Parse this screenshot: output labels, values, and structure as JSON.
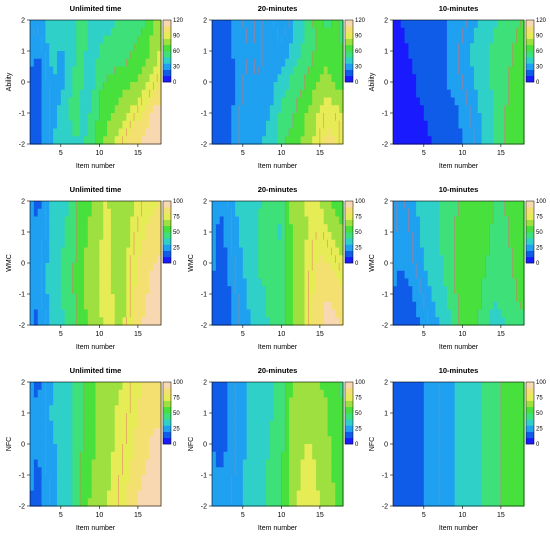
{
  "palette": [
    "#1a1aff",
    "#0f5ce8",
    "#1fa0f0",
    "#2fd0c8",
    "#3ee07a",
    "#48e03c",
    "#9ee040",
    "#e6ec55",
    "#f4e070",
    "#f8d8b0"
  ],
  "contour_color": "#e07070",
  "chart_data": [
    {
      "type": "heatmap",
      "title": "Unlimited time",
      "xlabel": "Item number",
      "ylabel": "Ability",
      "xlim": [
        1,
        18
      ],
      "ylim": [
        -2,
        2
      ],
      "xticks": [
        "5",
        "10",
        "15"
      ],
      "yticks": [
        "-2",
        "-1",
        "0",
        "1",
        "2"
      ],
      "colorbar_ticks": [
        "0",
        "30",
        "60",
        "90",
        "120"
      ],
      "zlim": [
        0,
        120
      ],
      "z": [
        [
          34,
          30,
          38,
          45,
          38,
          40,
          45,
          58,
          38,
          42,
          36,
          50,
          60,
          48,
          55,
          60,
          72,
          75
        ],
        [
          28,
          25,
          32,
          40,
          34,
          42,
          48,
          50,
          40,
          48,
          60,
          55,
          52,
          58,
          62,
          68,
          78,
          85
        ],
        [
          22,
          16,
          28,
          36,
          32,
          45,
          52,
          48,
          42,
          58,
          60,
          62,
          68,
          70,
          74,
          80,
          88,
          96
        ],
        [
          22,
          18,
          26,
          34,
          38,
          48,
          55,
          42,
          50,
          62,
          68,
          75,
          80,
          84,
          92,
          100,
          110,
          116
        ],
        [
          25,
          20,
          28,
          36,
          40,
          42,
          46,
          48,
          55,
          70,
          76,
          84,
          92,
          100,
          108,
          114,
          118,
          120
        ]
      ]
    },
    {
      "type": "heatmap",
      "title": "20-minutes",
      "xlabel": "Item number",
      "ylabel": "",
      "xlim": [
        1,
        18
      ],
      "ylim": [
        -2,
        2
      ],
      "xticks": [
        "5",
        "10",
        "15"
      ],
      "yticks": [
        "-2",
        "-1",
        "0",
        "1",
        "2"
      ],
      "colorbar_ticks": [
        "0",
        "30",
        "60",
        "90",
        "120"
      ],
      "zlim": [
        0,
        120
      ],
      "z": [
        [
          25,
          20,
          22,
          28,
          30,
          32,
          28,
          36,
          30,
          28,
          28,
          38,
          45,
          60,
          62,
          58,
          62,
          55
        ],
        [
          22,
          18,
          20,
          26,
          28,
          30,
          28,
          34,
          32,
          30,
          36,
          45,
          52,
          58,
          62,
          66,
          62,
          60
        ],
        [
          20,
          16,
          18,
          24,
          30,
          32,
          30,
          32,
          34,
          40,
          48,
          55,
          60,
          66,
          72,
          78,
          70,
          68
        ],
        [
          22,
          18,
          20,
          26,
          32,
          34,
          30,
          34,
          38,
          52,
          56,
          62,
          70,
          78,
          86,
          92,
          90,
          84
        ],
        [
          24,
          20,
          22,
          28,
          34,
          36,
          34,
          38,
          44,
          58,
          62,
          68,
          75,
          84,
          92,
          100,
          96,
          88
        ]
      ]
    },
    {
      "type": "heatmap",
      "title": "10-minutes",
      "xlabel": "Item number",
      "ylabel": "Ability",
      "xlim": [
        1,
        18
      ],
      "ylim": [
        -2,
        2
      ],
      "xticks": [
        "5",
        "10",
        "15"
      ],
      "yticks": [
        "-2",
        "-1",
        "0",
        "1",
        "2"
      ],
      "colorbar_ticks": [
        "0",
        "30",
        "60",
        "90",
        "120"
      ],
      "zlim": [
        0,
        120
      ],
      "z": [
        [
          10,
          12,
          14,
          16,
          18,
          20,
          22,
          24,
          26,
          28,
          32,
          36,
          40,
          46,
          50,
          54,
          58,
          60
        ],
        [
          8,
          10,
          12,
          14,
          16,
          18,
          20,
          24,
          28,
          32,
          36,
          40,
          44,
          50,
          54,
          58,
          62,
          64
        ],
        [
          8,
          9,
          10,
          12,
          14,
          16,
          20,
          24,
          28,
          30,
          34,
          38,
          44,
          50,
          56,
          60,
          66,
          68
        ],
        [
          8,
          9,
          10,
          11,
          12,
          14,
          16,
          18,
          22,
          26,
          30,
          34,
          40,
          48,
          56,
          62,
          68,
          70
        ],
        [
          6,
          7,
          8,
          9,
          10,
          12,
          14,
          16,
          20,
          24,
          28,
          32,
          38,
          46,
          54,
          62,
          70,
          72
        ]
      ]
    },
    {
      "type": "heatmap",
      "title": "Unlimited time",
      "xlabel": "Item number",
      "ylabel": "WMC",
      "xlim": [
        1,
        18
      ],
      "ylim": [
        -2,
        2
      ],
      "xticks": [
        "5",
        "10",
        "15"
      ],
      "yticks": [
        "-2",
        "-1",
        "0",
        "1",
        "2"
      ],
      "colorbar_ticks": [
        "0",
        "25",
        "50",
        "75",
        "100"
      ],
      "zlim": [
        0,
        100
      ],
      "z": [
        [
          22,
          18,
          24,
          32,
          36,
          40,
          48,
          56,
          60,
          66,
          72,
          62,
          60,
          66,
          72,
          76,
          78,
          80
        ],
        [
          24,
          20,
          26,
          34,
          38,
          42,
          50,
          58,
          62,
          68,
          74,
          64,
          62,
          70,
          76,
          80,
          84,
          86
        ],
        [
          26,
          22,
          28,
          36,
          40,
          44,
          52,
          60,
          64,
          70,
          76,
          66,
          64,
          74,
          80,
          86,
          90,
          92
        ],
        [
          24,
          20,
          28,
          36,
          40,
          44,
          52,
          60,
          64,
          70,
          76,
          68,
          66,
          76,
          82,
          88,
          94,
          96
        ],
        [
          22,
          18,
          26,
          34,
          38,
          42,
          50,
          58,
          62,
          68,
          74,
          70,
          68,
          78,
          86,
          92,
          98,
          100
        ]
      ]
    },
    {
      "type": "heatmap",
      "title": "20-minutes",
      "xlabel": "Item number",
      "ylabel": "WMC",
      "xlim": [
        1,
        18
      ],
      "ylim": [
        -2,
        2
      ],
      "xticks": [
        "5",
        "10",
        "15"
      ],
      "yticks": [
        "-2",
        "-1",
        "0",
        "1",
        "2"
      ],
      "colorbar_ticks": [
        "0",
        "25",
        "50",
        "75",
        "100"
      ],
      "zlim": [
        0,
        100
      ],
      "z": [
        [
          26,
          20,
          24,
          30,
          34,
          36,
          38,
          44,
          40,
          42,
          60,
          66,
          70,
          72,
          70,
          62,
          56,
          52
        ],
        [
          24,
          18,
          22,
          28,
          32,
          36,
          40,
          46,
          44,
          38,
          58,
          64,
          68,
          74,
          76,
          72,
          66,
          62
        ],
        [
          22,
          16,
          20,
          26,
          30,
          34,
          40,
          44,
          48,
          40,
          56,
          62,
          70,
          76,
          82,
          80,
          76,
          72
        ],
        [
          20,
          14,
          18,
          24,
          28,
          32,
          38,
          40,
          46,
          44,
          54,
          62,
          70,
          78,
          86,
          90,
          86,
          82
        ],
        [
          18,
          12,
          16,
          22,
          26,
          30,
          36,
          38,
          44,
          48,
          54,
          62,
          72,
          80,
          88,
          96,
          92,
          88
        ]
      ]
    },
    {
      "type": "heatmap",
      "title": "10-minutes",
      "xlabel": "Item number",
      "ylabel": "WMC",
      "xlim": [
        1,
        18
      ],
      "ylim": [
        -2,
        2
      ],
      "xticks": [
        "5",
        "10",
        "15"
      ],
      "yticks": [
        "-2",
        "-1",
        "0",
        "1",
        "2"
      ],
      "colorbar_ticks": [
        "0",
        "25",
        "50",
        "75",
        "100"
      ],
      "zlim": [
        0,
        100
      ],
      "z": [
        [
          28,
          24,
          26,
          30,
          34,
          38,
          40,
          44,
          48,
          52,
          56,
          60,
          56,
          50,
          48,
          52,
          56,
          58
        ],
        [
          26,
          22,
          24,
          28,
          32,
          36,
          40,
          44,
          50,
          54,
          58,
          60,
          54,
          48,
          46,
          50,
          54,
          56
        ],
        [
          24,
          20,
          22,
          26,
          30,
          34,
          38,
          44,
          52,
          58,
          60,
          58,
          50,
          44,
          44,
          48,
          52,
          54
        ],
        [
          20,
          16,
          18,
          22,
          26,
          30,
          34,
          40,
          48,
          56,
          58,
          54,
          46,
          40,
          42,
          46,
          50,
          52
        ],
        [
          16,
          12,
          14,
          18,
          22,
          26,
          30,
          36,
          44,
          52,
          54,
          50,
          42,
          36,
          38,
          42,
          46,
          48
        ]
      ]
    },
    {
      "type": "heatmap",
      "title": "Unlimited time",
      "xlabel": "Item number",
      "ylabel": "NFC",
      "xlim": [
        1,
        18
      ],
      "ylim": [
        -2,
        2
      ],
      "xticks": [
        "5",
        "10",
        "15"
      ],
      "yticks": [
        "-2",
        "-1",
        "0",
        "1",
        "2"
      ],
      "colorbar_ticks": [
        "0",
        "25",
        "50",
        "75",
        "100"
      ],
      "zlim": [
        0,
        100
      ],
      "z": [
        [
          22,
          18,
          24,
          30,
          34,
          38,
          44,
          52,
          58,
          62,
          66,
          68,
          70,
          74,
          78,
          82,
          84,
          84
        ],
        [
          24,
          20,
          26,
          32,
          34,
          38,
          44,
          50,
          56,
          62,
          66,
          70,
          72,
          76,
          80,
          84,
          88,
          88
        ],
        [
          24,
          20,
          26,
          30,
          30,
          34,
          42,
          52,
          58,
          62,
          68,
          70,
          74,
          78,
          82,
          86,
          92,
          92
        ],
        [
          22,
          18,
          24,
          28,
          32,
          36,
          44,
          54,
          60,
          64,
          68,
          72,
          76,
          80,
          86,
          92,
          96,
          96
        ],
        [
          20,
          16,
          22,
          28,
          34,
          38,
          46,
          56,
          62,
          66,
          70,
          74,
          78,
          84,
          90,
          96,
          100,
          100
        ]
      ]
    },
    {
      "type": "heatmap",
      "title": "20-minutes",
      "xlabel": "Item number",
      "ylabel": "NFC",
      "xlim": [
        1,
        18
      ],
      "ylim": [
        -2,
        2
      ],
      "xticks": [
        "5",
        "10",
        "15"
      ],
      "yticks": [
        "-2",
        "-1",
        "0",
        "1",
        "2"
      ],
      "colorbar_ticks": [
        "0",
        "25",
        "50",
        "75",
        "100"
      ],
      "zlim": [
        0,
        100
      ],
      "z": [
        [
          20,
          18,
          20,
          24,
          28,
          32,
          34,
          38,
          40,
          44,
          58,
          62,
          64,
          62,
          60,
          58,
          52,
          48
        ],
        [
          20,
          18,
          20,
          24,
          28,
          32,
          34,
          38,
          40,
          44,
          60,
          64,
          66,
          66,
          64,
          60,
          54,
          50
        ],
        [
          20,
          18,
          20,
          24,
          28,
          32,
          34,
          38,
          42,
          46,
          60,
          66,
          70,
          70,
          66,
          62,
          56,
          52
        ],
        [
          22,
          20,
          22,
          26,
          30,
          34,
          36,
          40,
          44,
          48,
          62,
          68,
          72,
          72,
          68,
          64,
          58,
          54
        ],
        [
          22,
          20,
          22,
          26,
          30,
          34,
          36,
          40,
          44,
          48,
          64,
          70,
          74,
          74,
          70,
          66,
          60,
          56
        ]
      ]
    },
    {
      "type": "heatmap",
      "title": "10-minutes",
      "xlabel": "Item number",
      "ylabel": "NFC",
      "xlim": [
        1,
        18
      ],
      "ylim": [
        -2,
        2
      ],
      "xticks": [
        "5",
        "10",
        "15"
      ],
      "yticks": [
        "-2",
        "-1",
        "0",
        "1",
        "2"
      ],
      "colorbar_ticks": [
        "0",
        "25",
        "50",
        "75",
        "100"
      ],
      "zlim": [
        0,
        100
      ],
      "z": [
        [
          10,
          12,
          14,
          16,
          20,
          22,
          24,
          28,
          30,
          32,
          34,
          38,
          42,
          46,
          50,
          54,
          58,
          60
        ],
        [
          10,
          12,
          14,
          16,
          20,
          22,
          24,
          28,
          30,
          32,
          34,
          38,
          42,
          46,
          50,
          54,
          58,
          60
        ],
        [
          10,
          12,
          14,
          16,
          20,
          22,
          24,
          28,
          30,
          32,
          34,
          38,
          42,
          46,
          50,
          54,
          58,
          60
        ],
        [
          10,
          12,
          14,
          16,
          20,
          22,
          24,
          28,
          30,
          32,
          34,
          38,
          42,
          46,
          50,
          54,
          58,
          60
        ],
        [
          10,
          12,
          14,
          16,
          20,
          22,
          24,
          28,
          30,
          32,
          34,
          38,
          42,
          46,
          50,
          54,
          58,
          60
        ]
      ]
    }
  ]
}
